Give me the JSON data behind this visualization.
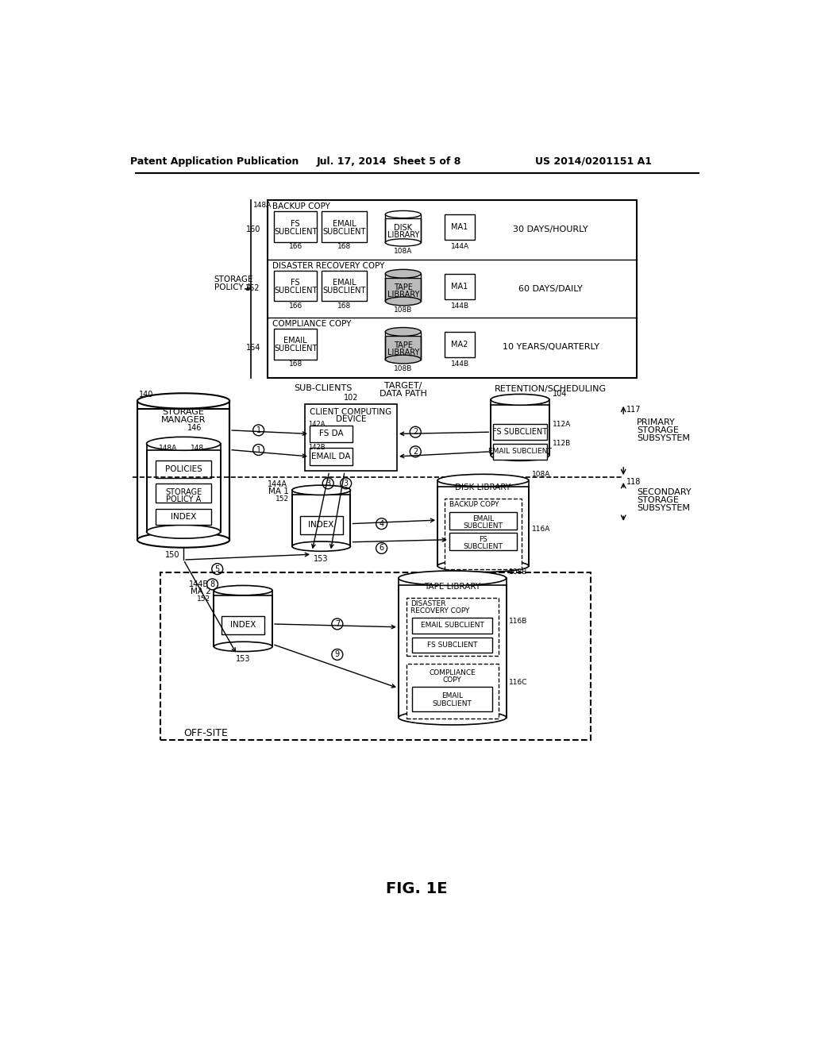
{
  "title": "FIG. 1E",
  "header_left": "Patent Application Publication",
  "header_center": "Jul. 17, 2014  Sheet 5 of 8",
  "header_right": "US 2014/0201151 A1",
  "bg_color": "#ffffff",
  "text_color": "#000000"
}
